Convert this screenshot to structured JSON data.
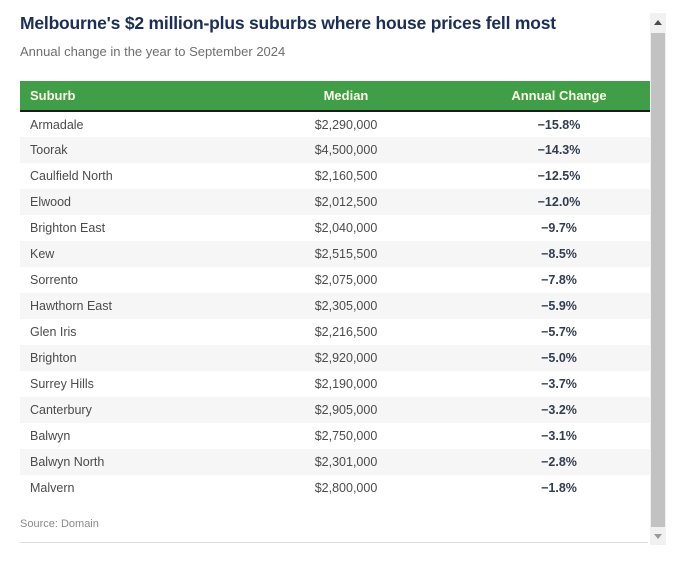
{
  "chart_data": {
    "type": "table",
    "title": "Melbourne's $2 million-plus suburbs where house prices fell most",
    "subtitle": "Annual change in the year to September 2024",
    "columns": [
      "Suburb",
      "Median",
      "Annual Change"
    ],
    "rows": [
      {
        "suburb": "Armadale",
        "median": "$2,290,000",
        "annual_change": "−15.8%"
      },
      {
        "suburb": "Toorak",
        "median": "$4,500,000",
        "annual_change": "−14.3%"
      },
      {
        "suburb": "Caulfield North",
        "median": "$2,160,500",
        "annual_change": "−12.5%"
      },
      {
        "suburb": "Elwood",
        "median": "$2,012,500",
        "annual_change": "−12.0%"
      },
      {
        "suburb": "Brighton East",
        "median": "$2,040,000",
        "annual_change": "−9.7%"
      },
      {
        "suburb": "Kew",
        "median": "$2,515,500",
        "annual_change": "−8.5%"
      },
      {
        "suburb": "Sorrento",
        "median": "$2,075,000",
        "annual_change": "−7.8%"
      },
      {
        "suburb": "Hawthorn East",
        "median": "$2,305,000",
        "annual_change": "−5.9%"
      },
      {
        "suburb": "Glen Iris",
        "median": "$2,216,500",
        "annual_change": "−5.7%"
      },
      {
        "suburb": "Brighton",
        "median": "$2,920,000",
        "annual_change": "−5.0%"
      },
      {
        "suburb": "Surrey Hills",
        "median": "$2,190,000",
        "annual_change": "−3.7%"
      },
      {
        "suburb": "Canterbury",
        "median": "$2,905,000",
        "annual_change": "−3.2%"
      },
      {
        "suburb": "Balwyn",
        "median": "$2,750,000",
        "annual_change": "−3.1%"
      },
      {
        "suburb": "Balwyn North",
        "median": "$2,301,000",
        "annual_change": "−2.8%"
      },
      {
        "suburb": "Malvern",
        "median": "$2,800,000",
        "annual_change": "−1.8%"
      }
    ],
    "source": "Source: Domain",
    "layout_hints": {
      "zebra_striping": true,
      "header_position": "top"
    }
  },
  "colors": {
    "header_background": "#3f9e47",
    "header_text": "#fbfbe8",
    "header_border_bottom": "#1c1c1c",
    "title_text": "#1b2f55",
    "subtitle_text": "#6e6e6e",
    "row_alt_background": "#f6f6f6",
    "body_text": "#4b4b4b",
    "change_text": "#323c50",
    "scrollbar_track": "#f1f1f1",
    "scrollbar_thumb": "#c2c2c2"
  }
}
